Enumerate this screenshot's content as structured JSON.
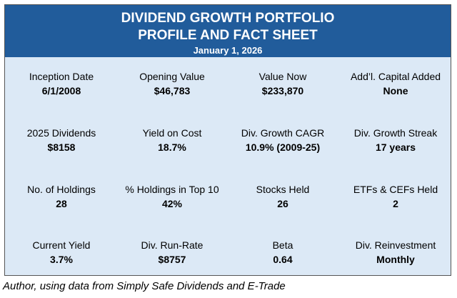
{
  "header": {
    "title": "DIVIDEND GROWTH PORTFOLIO",
    "subtitle": "PROFILE AND FACT SHEET",
    "date": "January 1, 2026"
  },
  "rows": [
    [
      {
        "label": "Inception Date",
        "value": "6/1/2008"
      },
      {
        "label": "Opening Value",
        "value": "$46,783"
      },
      {
        "label": "Value Now",
        "value": "$233,870"
      },
      {
        "label": "Add’l. Capital Added",
        "value": "None"
      }
    ],
    [
      {
        "label": "2025 Dividends",
        "value": "$8158"
      },
      {
        "label": "Yield on Cost",
        "value": "18.7%"
      },
      {
        "label": "Div. Growth CAGR",
        "value": "10.9% (2009-25)"
      },
      {
        "label": "Div. Growth Streak",
        "value": "17 years"
      }
    ],
    [
      {
        "label": "No. of Holdings",
        "value": "28"
      },
      {
        "label": "% Holdings in Top 10",
        "value": "42%"
      },
      {
        "label": "Stocks Held",
        "value": "26"
      },
      {
        "label": "ETFs & CEFs Held",
        "value": "2"
      }
    ],
    [
      {
        "label": "Current Yield",
        "value": "3.7%"
      },
      {
        "label": "Div. Run-Rate",
        "value": "$8757"
      },
      {
        "label": "Beta",
        "value": "0.64"
      },
      {
        "label": "Div. Reinvestment",
        "value": "Monthly"
      }
    ]
  ],
  "caption": "Author, using data from Simply Safe Dividends and E-Trade",
  "colors": {
    "header": "#215c9b",
    "body": "#dce9f6"
  }
}
